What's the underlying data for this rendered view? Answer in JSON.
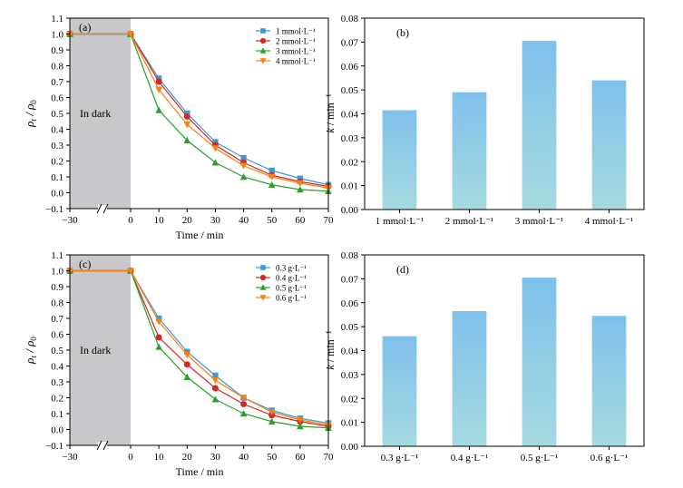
{
  "colors": {
    "s1": "#3a9bd5",
    "s2": "#d62728",
    "s3": "#2ca02c",
    "s4": "#ff7f0e",
    "dark_region": "#c8c8ca",
    "bar_top": "#7fc0ec",
    "bar_bottom": "#a6dadf"
  },
  "chart_data": [
    {
      "id": "a",
      "type": "line",
      "panel_label": "(a)",
      "annotation": "In dark",
      "xlabel": "Time / min",
      "ylabel_main": "ρ",
      "ylabel_sub_t": "t",
      "ylabel_slash": " / ρ",
      "ylabel_sub_0": "0",
      "xticks": [
        "−30",
        "0",
        "10",
        "20",
        "30",
        "40",
        "50",
        "60",
        "70"
      ],
      "xtick_values": [
        -30,
        0,
        10,
        20,
        30,
        40,
        50,
        60,
        70
      ],
      "ylim": [
        -0.1,
        1.1
      ],
      "yticks": [
        "−0.1",
        "0.0",
        "0.1",
        "0.2",
        "0.3",
        "0.4",
        "0.5",
        "0.6",
        "0.7",
        "0.8",
        "0.9",
        "1.0",
        "1.1"
      ],
      "grid": false,
      "legend_position": "top-right",
      "x": [
        -30,
        0,
        10,
        20,
        30,
        40,
        50,
        60,
        70
      ],
      "series": [
        {
          "name": "1 mmol·L⁻¹",
          "marker": "square",
          "color_key": "s1",
          "values": [
            1.0,
            1.0,
            0.72,
            0.5,
            0.32,
            0.22,
            0.14,
            0.09,
            0.05
          ]
        },
        {
          "name": "2 mmol·L⁻¹",
          "marker": "circle",
          "color_key": "s2",
          "values": [
            1.0,
            1.0,
            0.7,
            0.48,
            0.3,
            0.19,
            0.11,
            0.07,
            0.04
          ]
        },
        {
          "name": "3 mmol·L⁻¹",
          "marker": "triangle-up",
          "color_key": "s3",
          "values": [
            1.0,
            1.0,
            0.52,
            0.33,
            0.19,
            0.1,
            0.05,
            0.02,
            0.01
          ]
        },
        {
          "name": "4 mmol·L⁻¹",
          "marker": "triangle-down",
          "color_key": "s4",
          "values": [
            1.0,
            1.0,
            0.65,
            0.43,
            0.28,
            0.17,
            0.1,
            0.06,
            0.03
          ]
        }
      ]
    },
    {
      "id": "b",
      "type": "bar",
      "panel_label": "(b)",
      "ylabel_main": "k",
      "ylabel_rest": " / min⁻¹",
      "categories": [
        "1 mmol·L⁻¹",
        "2 mmol·L⁻¹",
        "3 mmol·L⁻¹",
        "4 mmol·L⁻¹"
      ],
      "values": [
        0.0415,
        0.049,
        0.0705,
        0.054
      ],
      "ylim": [
        0,
        0.08
      ],
      "yticks": [
        "0.00",
        "0.01",
        "0.02",
        "0.03",
        "0.04",
        "0.05",
        "0.06",
        "0.07",
        "0.08"
      ],
      "grid": false
    },
    {
      "id": "c",
      "type": "line",
      "panel_label": "(c)",
      "annotation": "In dark",
      "xlabel": "Time / min",
      "ylabel_main": "ρ",
      "ylabel_sub_t": "t",
      "ylabel_slash": " / ρ",
      "ylabel_sub_0": "0",
      "xticks": [
        "−30",
        "0",
        "10",
        "20",
        "30",
        "40",
        "50",
        "60",
        "70"
      ],
      "xtick_values": [
        -30,
        0,
        10,
        20,
        30,
        40,
        50,
        60,
        70
      ],
      "ylim": [
        -0.1,
        1.1
      ],
      "yticks": [
        "−0.1",
        "0.0",
        "0.1",
        "0.2",
        "0.3",
        "0.4",
        "0.5",
        "0.6",
        "0.7",
        "0.8",
        "0.9",
        "1.0",
        "1.1"
      ],
      "grid": false,
      "legend_position": "top-right",
      "x": [
        -30,
        0,
        10,
        20,
        30,
        40,
        50,
        60,
        70
      ],
      "series": [
        {
          "name": "0.3 g·L⁻¹",
          "marker": "square",
          "color_key": "s1",
          "values": [
            1.0,
            1.0,
            0.7,
            0.49,
            0.34,
            0.2,
            0.12,
            0.07,
            0.04
          ]
        },
        {
          "name": "0.4 g·L⁻¹",
          "marker": "circle",
          "color_key": "s2",
          "values": [
            1.0,
            1.0,
            0.58,
            0.41,
            0.26,
            0.16,
            0.09,
            0.05,
            0.02
          ]
        },
        {
          "name": "0.5 g·L⁻¹",
          "marker": "triangle-up",
          "color_key": "s3",
          "values": [
            1.0,
            1.0,
            0.52,
            0.33,
            0.19,
            0.1,
            0.05,
            0.02,
            0.01
          ]
        },
        {
          "name": "0.6 g·L⁻¹",
          "marker": "triangle-down",
          "color_key": "s4",
          "values": [
            1.0,
            1.0,
            0.68,
            0.47,
            0.31,
            0.2,
            0.11,
            0.06,
            0.03
          ]
        }
      ]
    },
    {
      "id": "d",
      "type": "bar",
      "panel_label": "(d)",
      "ylabel_main": "k",
      "ylabel_rest": " / min⁻¹",
      "categories": [
        "0.3 g·L⁻¹",
        "0.4 g·L⁻¹",
        "0.5 g·L⁻¹",
        "0.6 g·L⁻¹"
      ],
      "values": [
        0.046,
        0.0565,
        0.0705,
        0.0545
      ],
      "ylim": [
        0,
        0.08
      ],
      "yticks": [
        "0.00",
        "0.01",
        "0.02",
        "0.03",
        "0.04",
        "0.05",
        "0.06",
        "0.07",
        "0.08"
      ],
      "grid": false
    }
  ]
}
